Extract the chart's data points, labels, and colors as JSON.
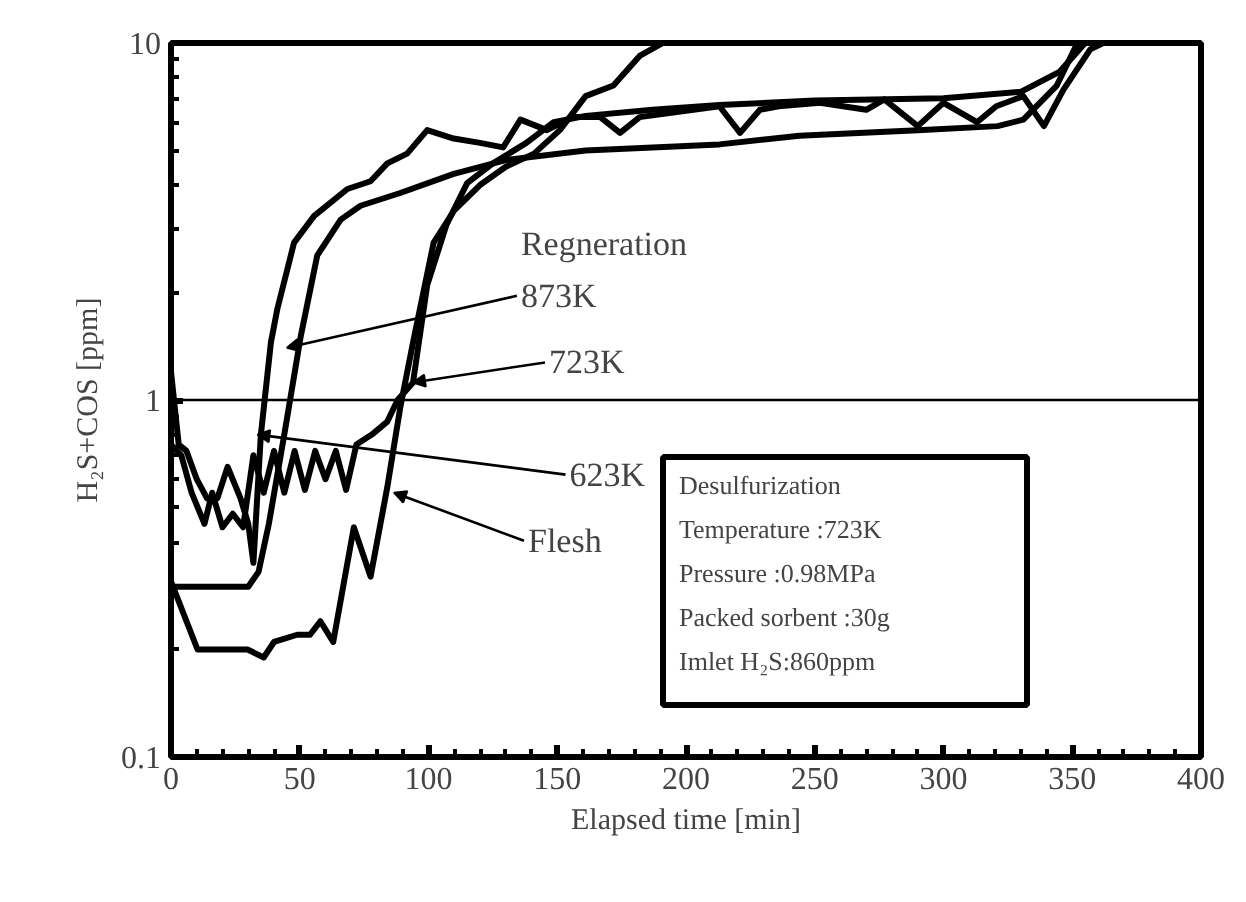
{
  "chart_data": {
    "type": "line",
    "xlabel": "Elapsed time [min]",
    "ylabel": "H₂S+COS [ppm]",
    "xlim": [
      0,
      400
    ],
    "xticks": [
      0,
      50,
      100,
      150,
      200,
      250,
      300,
      350,
      400
    ],
    "ylim": [
      0.1,
      10
    ],
    "yticks": [
      0.1,
      1,
      10
    ],
    "log": "y",
    "grid": false,
    "marker": "none",
    "line_style": "solid",
    "series": [
      {
        "color": "#000000",
        "x": [
          0,
          30,
          34,
          38,
          44,
          50.4,
          56.8,
          65.9,
          73.6,
          89,
          109.8,
          130,
          161,
          213,
          244,
          290,
          321,
          331,
          344,
          352
        ],
        "values": [
          0.3,
          0.3,
          0.33,
          0.45,
          0.8,
          1.51,
          2.54,
          3.2,
          3.5,
          3.8,
          4.3,
          4.7,
          5.0,
          5.2,
          5.5,
          5.7,
          5.85,
          6.1,
          7.6,
          10
        ]
      },
      {
        "color": "#000000",
        "x": [
          0,
          3,
          6,
          10,
          14,
          18,
          22,
          27,
          30,
          32,
          34.9,
          38.8,
          41.3,
          47.8,
          55.6,
          68.5,
          77.5,
          84,
          91.7,
          99.5,
          109.8,
          120,
          129,
          135.7,
          146,
          156,
          166.7,
          174.4,
          182,
          213,
          221,
          228.7,
          236,
          252,
          270,
          277,
          290,
          300,
          313,
          320.5,
          331,
          339,
          346.6,
          357,
          362
        ],
        "values": [
          1.2,
          0.75,
          0.72,
          0.6,
          0.53,
          0.53,
          0.65,
          0.53,
          0.45,
          0.35,
          0.8,
          1.45,
          1.8,
          2.76,
          3.28,
          3.9,
          4.1,
          4.6,
          4.9,
          5.7,
          5.4,
          5.25,
          5.1,
          6.1,
          5.7,
          6.2,
          6.2,
          5.6,
          6.2,
          6.65,
          5.6,
          6.5,
          6.65,
          6.8,
          6.5,
          6.95,
          5.85,
          6.8,
          6.0,
          6.65,
          7.1,
          5.85,
          7.4,
          9.6,
          10
        ]
      },
      {
        "color": "#000000",
        "x": [
          0,
          4,
          8,
          13,
          16,
          20,
          24,
          28,
          32,
          36,
          40,
          44,
          48,
          52,
          56,
          60,
          64,
          68,
          72,
          78,
          84,
          88,
          94,
          99.5,
          107,
          115,
          125,
          138,
          148.6,
          161,
          187,
          213,
          250,
          300,
          330,
          345,
          355
        ],
        "values": [
          0.75,
          0.7,
          0.55,
          0.45,
          0.55,
          0.44,
          0.48,
          0.44,
          0.7,
          0.55,
          0.72,
          0.55,
          0.72,
          0.56,
          0.72,
          0.6,
          0.72,
          0.56,
          0.75,
          0.8,
          0.87,
          1.0,
          1.12,
          2.1,
          3.1,
          4.05,
          4.6,
          5.25,
          6.0,
          6.25,
          6.5,
          6.7,
          6.9,
          7.0,
          7.3,
          8.3,
          10
        ]
      },
      {
        "color": "#000000",
        "x": [
          0,
          10.3,
          29.7,
          36,
          40,
          49,
          54,
          58,
          63,
          71,
          77.5,
          84,
          89,
          94,
          102,
          110,
          120,
          130,
          141,
          151,
          161,
          171.8,
          182,
          191
        ],
        "values": [
          0.31,
          0.2,
          0.2,
          0.19,
          0.21,
          0.22,
          0.22,
          0.24,
          0.21,
          0.44,
          0.32,
          0.57,
          0.95,
          1.45,
          2.76,
          3.4,
          4.0,
          4.5,
          4.9,
          5.7,
          7.1,
          7.6,
          9.2,
          10
        ]
      }
    ],
    "ref_lines": [
      {
        "axis": "y",
        "value": 1,
        "color": "#000000"
      }
    ],
    "annotations": [
      {
        "text": "873K",
        "x": 45,
        "y": 1.4
      },
      {
        "text": "723K",
        "x": 94,
        "y": 1.12
      },
      {
        "text": "623K",
        "x": 33.6,
        "y": 0.8
      },
      {
        "text": "Flesh",
        "x": 86.6,
        "y": 0.55
      },
      "Regneration",
      "Desulfurization",
      "Temperature :723K",
      "Pressure :0.98MPa",
      "Packed sorbent :30g",
      "Imlet H₂S:860ppm"
    ]
  }
}
